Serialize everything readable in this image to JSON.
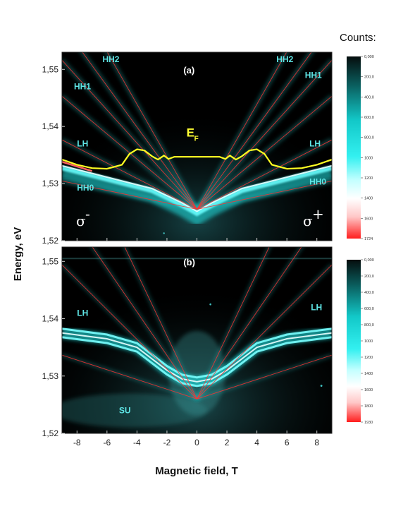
{
  "chart_data": [
    {
      "type": "heatmap",
      "panel_label": "(a)",
      "xlabel": "Magnetic field, T",
      "ylabel": "Energy, eV",
      "xlim": [
        -9,
        9
      ],
      "ylim": [
        1.52,
        1.553
      ],
      "x_ticks": [
        "-8",
        "-6",
        "-4",
        "-2",
        "0",
        "2",
        "4",
        "6",
        "8"
      ],
      "y_ticks": [
        "1,52",
        "1,53",
        "1,54",
        "1,55"
      ],
      "colorbar_title": "Counts:",
      "colorbar_ticks": [
        "0,000",
        "200,0",
        "400,0",
        "600,0",
        "800,0",
        "1000",
        "1200",
        "1400",
        "1600",
        "1724"
      ],
      "colorbar_range": [
        0,
        1724
      ],
      "landau_fan_origin": [
        0,
        1.5255
      ],
      "fan_slopes_eV_per_T": [
        0.00055,
        0.00135,
        0.0022,
        0.0029,
        0.0036,
        0.0046
      ],
      "bright_branch_edge": [
        [
          -9,
          1.5335
        ],
        [
          -6,
          1.5315
        ],
        [
          -3,
          1.5295
        ],
        [
          -1,
          1.527
        ],
        [
          0,
          1.5255
        ],
        [
          1,
          1.527
        ],
        [
          3,
          1.5295
        ],
        [
          6,
          1.5315
        ],
        [
          9,
          1.5335
        ]
      ],
      "fermi_energy_curve": [
        [
          -9,
          1.5342
        ],
        [
          -8,
          1.5333
        ],
        [
          -7,
          1.5327
        ],
        [
          -6,
          1.5326
        ],
        [
          -5,
          1.5333
        ],
        [
          -4.5,
          1.5352
        ],
        [
          -4,
          1.536
        ],
        [
          -3.5,
          1.5358
        ],
        [
          -3,
          1.5348
        ],
        [
          -2.6,
          1.5342
        ],
        [
          -2.2,
          1.5349
        ],
        [
          -1.9,
          1.5343
        ],
        [
          -1.5,
          1.5347
        ],
        [
          0,
          1.5347
        ],
        [
          1.5,
          1.5347
        ],
        [
          1.9,
          1.5343
        ],
        [
          2.2,
          1.5349
        ],
        [
          2.6,
          1.5342
        ],
        [
          3,
          1.5348
        ],
        [
          3.5,
          1.5358
        ],
        [
          4,
          1.536
        ],
        [
          4.5,
          1.5352
        ],
        [
          5,
          1.5333
        ],
        [
          6,
          1.5326
        ],
        [
          7,
          1.5327
        ],
        [
          8,
          1.5333
        ],
        [
          9,
          1.5342
        ]
      ],
      "annotations": [
        {
          "text": "HH2",
          "x": -6.3,
          "y": 1.5513
        },
        {
          "text": "HH1",
          "x": -8.2,
          "y": 1.5465
        },
        {
          "text": "LH",
          "x": -8.0,
          "y": 1.5365
        },
        {
          "text": "HH0",
          "x": -8.0,
          "y": 1.5288
        },
        {
          "text": "HH2",
          "x": 5.3,
          "y": 1.5513
        },
        {
          "text": "HH1",
          "x": 7.2,
          "y": 1.5485
        },
        {
          "text": "LH",
          "x": 7.5,
          "y": 1.5365
        },
        {
          "text": "HH0",
          "x": 7.5,
          "y": 1.5298
        }
      ],
      "ef_label": "E",
      "ef_subscript": "F",
      "sigma_left": "σ",
      "sigma_left_sup": "-",
      "sigma_right": "σ",
      "sigma_right_sup": "+"
    },
    {
      "type": "heatmap",
      "panel_label": "(b)",
      "xlabel": "Magnetic field, T",
      "ylabel": "Energy, eV",
      "xlim": [
        -9,
        9
      ],
      "ylim": [
        1.52,
        1.5525
      ],
      "x_ticks": [
        "-8",
        "-6",
        "-4",
        "-2",
        "0",
        "2",
        "4",
        "6",
        "8"
      ],
      "y_ticks": [
        "1,52",
        "1,53",
        "1,54",
        "1,55"
      ],
      "colorbar_ticks": [
        "0,000",
        "200,0",
        "400,0",
        "600,0",
        "800,0",
        "1000",
        "1200",
        "1400",
        "1600",
        "1800",
        "1930"
      ],
      "colorbar_range": [
        0,
        1930
      ],
      "landau_fan_origin": [
        0,
        1.526
      ],
      "fan_slopes_eV_per_T": [
        0.00085,
        0.0026,
        0.0038,
        0.0055
      ],
      "lh_branch": [
        [
          -9,
          1.5375
        ],
        [
          -6,
          1.5365
        ],
        [
          -4,
          1.535
        ],
        [
          -3,
          1.533
        ],
        [
          -2,
          1.531
        ],
        [
          -1,
          1.5295
        ],
        [
          0,
          1.529
        ],
        [
          1,
          1.5295
        ],
        [
          2,
          1.531
        ],
        [
          3,
          1.533
        ],
        [
          4,
          1.535
        ],
        [
          6,
          1.5365
        ],
        [
          9,
          1.5375
        ]
      ],
      "annotations": [
        {
          "text": "LH",
          "x": -8.0,
          "y": 1.5405
        },
        {
          "text": "LH",
          "x": 7.6,
          "y": 1.5415
        },
        {
          "text": "SU",
          "x": -5.2,
          "y": 1.5235
        }
      ]
    }
  ],
  "page": {
    "colorbar_title": "Counts:",
    "ylabel": "Energy, eV",
    "xlabel": "Magnetic field, T"
  }
}
